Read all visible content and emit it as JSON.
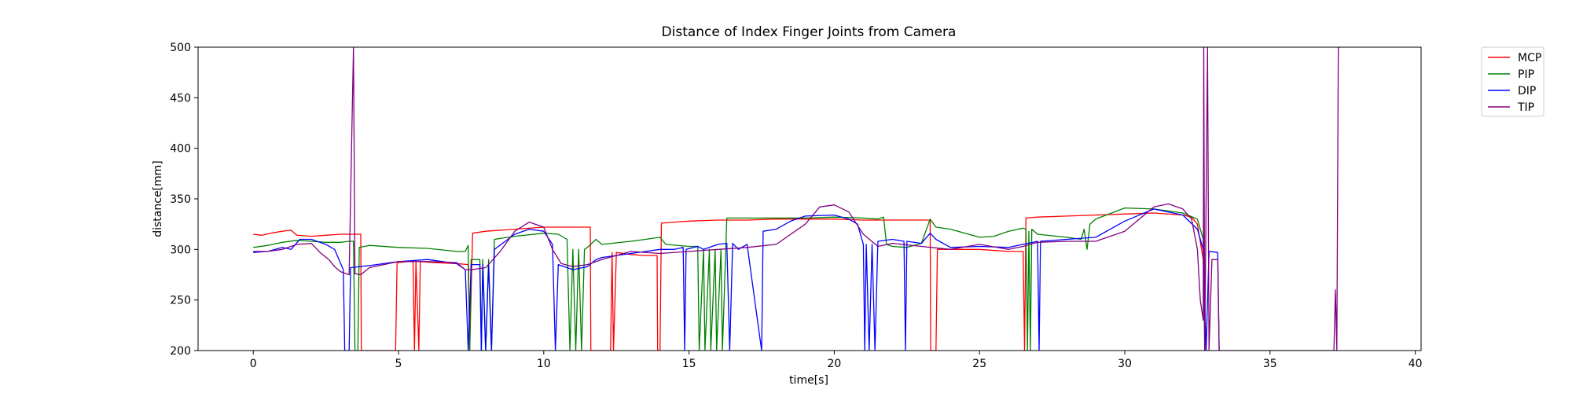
{
  "chart_data": {
    "type": "line",
    "title": "Distance of Index Finger Joints from Camera",
    "xlabel": "time[s]",
    "ylabel": "distance[mm]",
    "xlim": [
      -1.9,
      40.2
    ],
    "ylim": [
      200,
      500
    ],
    "xticks": [
      0,
      5,
      10,
      15,
      20,
      25,
      30,
      35,
      40
    ],
    "yticks": [
      200,
      250,
      300,
      350,
      400,
      450,
      500
    ],
    "grid": false,
    "legend_position": "outside-top-right",
    "series": [
      {
        "name": "MCP",
        "color": "#ff0000",
        "points": [
          [
            0,
            315
          ],
          [
            0.3,
            314
          ],
          [
            0.6,
            316
          ],
          [
            1.0,
            318
          ],
          [
            1.3,
            319
          ],
          [
            1.5,
            314
          ],
          [
            2,
            313
          ],
          [
            2.5,
            314
          ],
          [
            3,
            315
          ],
          [
            3.5,
            315
          ],
          [
            3.7,
            315
          ],
          [
            3.72,
            200
          ],
          [
            4.9,
            200
          ],
          [
            4.95,
            287
          ],
          [
            5.3,
            288
          ],
          [
            5.5,
            288
          ],
          [
            5.55,
            200
          ],
          [
            5.6,
            288
          ],
          [
            5.7,
            200
          ],
          [
            5.75,
            288
          ],
          [
            6.2,
            287
          ],
          [
            7.0,
            286
          ],
          [
            7.4,
            285
          ],
          [
            7.45,
            200
          ],
          [
            7.55,
            316
          ],
          [
            8.0,
            318
          ],
          [
            9.0,
            320
          ],
          [
            10.0,
            322
          ],
          [
            11.0,
            322
          ],
          [
            11.5,
            322
          ],
          [
            11.6,
            322
          ],
          [
            11.62,
            200
          ],
          [
            12.3,
            200
          ],
          [
            12.35,
            297
          ],
          [
            12.4,
            200
          ],
          [
            12.5,
            297
          ],
          [
            13.0,
            295
          ],
          [
            13.5,
            294
          ],
          [
            13.9,
            294
          ],
          [
            13.92,
            200
          ],
          [
            14.0,
            200
          ],
          [
            14.05,
            326
          ],
          [
            14.5,
            327
          ],
          [
            15,
            328
          ],
          [
            16,
            329
          ],
          [
            17,
            329
          ],
          [
            18,
            330
          ],
          [
            19,
            330
          ],
          [
            20,
            330
          ],
          [
            21,
            329
          ],
          [
            22,
            329
          ],
          [
            23,
            329
          ],
          [
            23.3,
            329
          ],
          [
            23.32,
            200
          ],
          [
            23.5,
            200
          ],
          [
            23.55,
            300
          ],
          [
            24,
            300
          ],
          [
            25,
            300
          ],
          [
            26,
            298
          ],
          [
            26.5,
            298
          ],
          [
            26.55,
            200
          ],
          [
            26.6,
            331
          ],
          [
            27,
            332
          ],
          [
            28,
            333
          ],
          [
            29,
            334
          ],
          [
            30,
            335
          ],
          [
            31,
            336
          ],
          [
            32,
            334
          ],
          [
            32.3,
            332
          ],
          [
            32.5,
            325
          ],
          [
            32.7,
            290
          ],
          [
            32.8,
            200
          ]
        ]
      },
      {
        "name": "PIP",
        "color": "#008000",
        "points": [
          [
            0,
            302
          ],
          [
            0.5,
            304
          ],
          [
            1.0,
            307
          ],
          [
            1.5,
            309
          ],
          [
            2,
            308
          ],
          [
            2.5,
            307
          ],
          [
            3,
            307
          ],
          [
            3.3,
            308
          ],
          [
            3.45,
            308
          ],
          [
            3.5,
            200
          ],
          [
            3.6,
            200
          ],
          [
            3.65,
            302
          ],
          [
            4,
            304
          ],
          [
            5,
            302
          ],
          [
            6,
            301
          ],
          [
            7,
            298
          ],
          [
            7.3,
            298
          ],
          [
            7.4,
            304
          ],
          [
            7.45,
            200
          ],
          [
            7.5,
            290
          ],
          [
            7.8,
            290
          ],
          [
            7.85,
            200
          ],
          [
            7.9,
            290
          ],
          [
            8.0,
            200
          ],
          [
            8.1,
            290
          ],
          [
            8.2,
            200
          ],
          [
            8.3,
            310
          ],
          [
            9,
            313
          ],
          [
            10,
            316
          ],
          [
            10.5,
            315
          ],
          [
            10.8,
            310
          ],
          [
            10.9,
            200
          ],
          [
            11.0,
            300
          ],
          [
            11.1,
            200
          ],
          [
            11.2,
            300
          ],
          [
            11.3,
            200
          ],
          [
            11.4,
            300
          ],
          [
            11.5,
            302
          ],
          [
            11.8,
            310
          ],
          [
            12,
            305
          ],
          [
            13,
            308
          ],
          [
            13.5,
            310
          ],
          [
            14,
            312
          ],
          [
            14.2,
            305
          ],
          [
            15,
            303
          ],
          [
            15.3,
            303
          ],
          [
            15.35,
            200
          ],
          [
            15.5,
            300
          ],
          [
            15.55,
            200
          ],
          [
            15.7,
            300
          ],
          [
            15.75,
            200
          ],
          [
            15.9,
            300
          ],
          [
            15.95,
            200
          ],
          [
            16.1,
            300
          ],
          [
            16.15,
            200
          ],
          [
            16.3,
            331
          ],
          [
            17,
            331
          ],
          [
            18,
            331
          ],
          [
            19,
            331
          ],
          [
            20,
            332
          ],
          [
            21,
            331
          ],
          [
            21.5,
            330
          ],
          [
            21.7,
            332
          ],
          [
            21.8,
            305
          ],
          [
            22,
            303
          ],
          [
            22.5,
            302
          ],
          [
            23,
            306
          ],
          [
            23.3,
            330
          ],
          [
            23.5,
            322
          ],
          [
            24,
            320
          ],
          [
            25,
            312
          ],
          [
            25.5,
            313
          ],
          [
            26,
            318
          ],
          [
            26.5,
            321
          ],
          [
            26.6,
            320
          ],
          [
            26.65,
            200
          ],
          [
            26.7,
            318
          ],
          [
            26.75,
            200
          ],
          [
            26.8,
            320
          ],
          [
            27,
            315
          ],
          [
            28,
            312
          ],
          [
            28.5,
            310
          ],
          [
            28.6,
            320
          ],
          [
            28.7,
            300
          ],
          [
            28.8,
            325
          ],
          [
            29,
            330
          ],
          [
            30,
            341
          ],
          [
            31,
            340
          ],
          [
            32,
            336
          ],
          [
            32.5,
            330
          ],
          [
            32.7,
            310
          ],
          [
            32.75,
            200
          ]
        ]
      },
      {
        "name": "DIP",
        "color": "#0000ff",
        "points": [
          [
            0,
            297
          ],
          [
            0.5,
            298
          ],
          [
            1.0,
            302
          ],
          [
            1.3,
            300
          ],
          [
            1.6,
            310
          ],
          [
            2,
            310
          ],
          [
            2.5,
            305
          ],
          [
            2.8,
            300
          ],
          [
            3.1,
            280
          ],
          [
            3.15,
            200
          ],
          [
            3.3,
            200
          ],
          [
            3.35,
            282
          ],
          [
            4,
            284
          ],
          [
            5,
            288
          ],
          [
            6,
            290
          ],
          [
            7,
            286
          ],
          [
            7.3,
            280
          ],
          [
            7.4,
            200
          ],
          [
            7.5,
            285
          ],
          [
            7.8,
            285
          ],
          [
            7.85,
            200
          ],
          [
            7.9,
            285
          ],
          [
            8.0,
            200
          ],
          [
            8.1,
            285
          ],
          [
            8.2,
            200
          ],
          [
            8.3,
            300
          ],
          [
            9,
            315
          ],
          [
            9.5,
            320
          ],
          [
            10,
            318
          ],
          [
            10.3,
            305
          ],
          [
            10.4,
            200
          ],
          [
            10.5,
            285
          ],
          [
            11,
            280
          ],
          [
            11.5,
            283
          ],
          [
            11.8,
            290
          ],
          [
            12,
            292
          ],
          [
            13,
            296
          ],
          [
            14,
            300
          ],
          [
            14.5,
            300
          ],
          [
            14.8,
            302
          ],
          [
            14.85,
            200
          ],
          [
            14.9,
            300
          ],
          [
            15.3,
            303
          ],
          [
            15.5,
            300
          ],
          [
            16.0,
            305
          ],
          [
            16.3,
            306
          ],
          [
            16.4,
            200
          ],
          [
            16.5,
            306
          ],
          [
            16.7,
            300
          ],
          [
            17,
            305
          ],
          [
            17.5,
            200
          ],
          [
            17.55,
            318
          ],
          [
            18,
            320
          ],
          [
            18.5,
            328
          ],
          [
            19,
            333
          ],
          [
            20,
            334
          ],
          [
            20.5,
            330
          ],
          [
            20.8,
            325
          ],
          [
            21.0,
            305
          ],
          [
            21.05,
            200
          ],
          [
            21.1,
            305
          ],
          [
            21.2,
            200
          ],
          [
            21.3,
            305
          ],
          [
            21.4,
            200
          ],
          [
            21.5,
            308
          ],
          [
            22,
            310
          ],
          [
            22.4,
            308
          ],
          [
            22.45,
            200
          ],
          [
            22.5,
            308
          ],
          [
            23,
            306
          ],
          [
            23.3,
            316
          ],
          [
            23.5,
            310
          ],
          [
            24,
            302
          ],
          [
            25,
            303
          ],
          [
            26,
            302
          ],
          [
            26.5,
            305
          ],
          [
            27,
            308
          ],
          [
            27.05,
            200
          ],
          [
            27.1,
            308
          ],
          [
            28,
            310
          ],
          [
            29,
            312
          ],
          [
            30,
            328
          ],
          [
            31,
            340
          ],
          [
            32,
            334
          ],
          [
            32.5,
            320
          ],
          [
            32.7,
            300
          ],
          [
            32.8,
            200
          ],
          [
            32.9,
            298
          ],
          [
            33.2,
            297
          ],
          [
            33.25,
            200
          ]
        ]
      },
      {
        "name": "TIP",
        "color": "#800080",
        "points": [
          [
            0,
            298
          ],
          [
            0.5,
            298
          ],
          [
            1.0,
            300
          ],
          [
            1.5,
            305
          ],
          [
            2,
            306
          ],
          [
            2.3,
            297
          ],
          [
            2.6,
            290
          ],
          [
            2.8,
            283
          ],
          [
            3.0,
            278
          ],
          [
            3.3,
            275
          ],
          [
            3.45,
            500
          ],
          [
            3.5,
            276
          ],
          [
            3.7,
            275
          ],
          [
            4.0,
            282
          ],
          [
            5,
            288
          ],
          [
            6,
            288
          ],
          [
            7,
            287
          ],
          [
            7.3,
            280
          ],
          [
            7.5,
            280
          ],
          [
            8.0,
            282
          ],
          [
            8.5,
            298
          ],
          [
            9,
            318
          ],
          [
            9.5,
            327
          ],
          [
            10,
            322
          ],
          [
            10.3,
            300
          ],
          [
            10.6,
            286
          ],
          [
            11,
            283
          ],
          [
            11.5,
            285
          ],
          [
            12,
            290
          ],
          [
            13,
            298
          ],
          [
            14,
            296
          ],
          [
            15,
            298
          ],
          [
            16,
            300
          ],
          [
            17,
            302
          ],
          [
            18,
            305
          ],
          [
            19,
            325
          ],
          [
            19.5,
            342
          ],
          [
            20,
            344
          ],
          [
            20.5,
            337
          ],
          [
            21,
            315
          ],
          [
            21.5,
            303
          ],
          [
            22,
            306
          ],
          [
            23,
            303
          ],
          [
            24,
            300
          ],
          [
            25,
            305
          ],
          [
            26,
            300
          ],
          [
            26.5,
            303
          ],
          [
            27,
            307
          ],
          [
            28,
            308
          ],
          [
            29,
            308
          ],
          [
            30,
            318
          ],
          [
            31,
            342
          ],
          [
            31.5,
            345
          ],
          [
            32,
            340
          ],
          [
            32.3,
            330
          ],
          [
            32.5,
            300
          ],
          [
            32.6,
            250
          ],
          [
            32.7,
            230
          ],
          [
            32.72,
            500
          ],
          [
            32.75,
            200
          ],
          [
            32.85,
            500
          ],
          [
            32.9,
            200
          ],
          [
            33.0,
            290
          ],
          [
            33.2,
            290
          ],
          [
            33.25,
            200
          ],
          [
            37.2,
            200
          ],
          [
            37.25,
            260
          ],
          [
            37.3,
            200
          ],
          [
            37.35,
            500
          ],
          [
            37.4,
            500
          ]
        ]
      }
    ]
  }
}
